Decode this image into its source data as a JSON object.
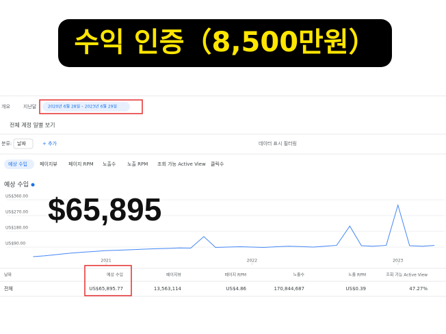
{
  "banner": {
    "title": "수익 인증（8,500만원）"
  },
  "overlay_total": "$65,895",
  "toolbar": {
    "tabs": [
      "개요",
      "지난달"
    ],
    "date_range": "2020년 6월 28일 – 2023년 6월 29일"
  },
  "view_title": "전체 계정 일별 보기",
  "filters": {
    "breakdown": "분류:",
    "breakdown_value": "날짜",
    "add": "+ 추가",
    "filter": "데이터 표시 필터링"
  },
  "metric_tabs": [
    "예상 수입",
    "페이지뷰",
    "페이지 RPM",
    "노출수",
    "노출 RPM",
    "조회 가능 Active View",
    "클릭수"
  ],
  "chart_data": {
    "type": "line",
    "title": "예상 수입",
    "color": "#4285f4",
    "x": [
      2020.5,
      2020.58,
      2020.67,
      2020.75,
      2020.83,
      2020.92,
      2021,
      2021.08,
      2021.17,
      2021.25,
      2021.33,
      2021.42,
      2021.5,
      2021.58,
      2021.67,
      2021.75,
      2021.83,
      2021.92,
      2022,
      2022.08,
      2022.17,
      2022.25,
      2022.33,
      2022.42,
      2022.5,
      2022.58,
      2022.67,
      2022.75,
      2022.83,
      2022.92,
      2023,
      2023.08,
      2023.17,
      2023.25
    ],
    "values": [
      35,
      40,
      48,
      55,
      60,
      65,
      70,
      72,
      75,
      78,
      80,
      82,
      85,
      84,
      150,
      88,
      90,
      92,
      90,
      88,
      92,
      95,
      93,
      90,
      95,
      100,
      210,
      98,
      95,
      100,
      330,
      98,
      95,
      100
    ],
    "xlim": [
      2020.32,
      2023.32
    ],
    "xticks": [
      2021,
      2022,
      2023
    ],
    "ylim": [
      0,
      360
    ],
    "yticks": [
      {
        "value": 90,
        "label": "US$90.00"
      },
      {
        "value": 180,
        "label": "US$180.00"
      },
      {
        "value": 270,
        "label": "US$270.00"
      },
      {
        "value": 360,
        "label": "US$360.00"
      }
    ],
    "grid": true
  },
  "table": {
    "header": [
      "날짜",
      "예상 수입",
      "페이지뷰",
      "페이지 RPM",
      "노출수",
      "노출 RPM",
      "조회 가능 Active View"
    ],
    "rows": [
      [
        "전체",
        "US$65,895.77",
        "13,563,114",
        "US$4.86",
        "170,844,687",
        "US$0.39",
        "47.27%"
      ]
    ]
  }
}
